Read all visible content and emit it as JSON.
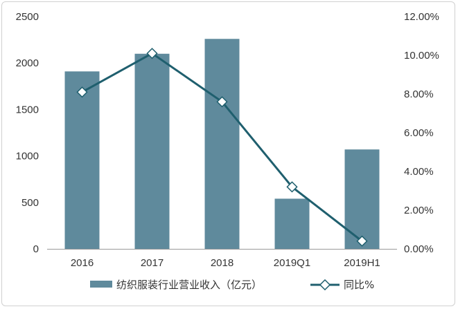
{
  "chart_data": {
    "type": "bar",
    "categories": [
      "2016",
      "2017",
      "2018",
      "2019Q1",
      "2019H1"
    ],
    "series": [
      {
        "name": "纺织服装行业营业收入（亿元）",
        "type": "bar",
        "axis": "left",
        "color": "#5f8a9c",
        "values": [
          1910,
          2100,
          2260,
          540,
          1070
        ]
      },
      {
        "name": "同比%",
        "type": "line",
        "axis": "right",
        "color": "#1f5f6e",
        "values": [
          0.081,
          0.101,
          0.076,
          0.032,
          0.004
        ]
      }
    ],
    "y_left": {
      "min": 0,
      "max": 2500,
      "ticks": [
        0,
        500,
        1000,
        1500,
        2000,
        2500
      ],
      "tick_labels": [
        "0",
        "500",
        "1000",
        "1500",
        "2000",
        "2500"
      ]
    },
    "y_right": {
      "min": 0,
      "max": 0.12,
      "ticks": [
        0,
        0.02,
        0.04,
        0.06,
        0.08,
        0.1,
        0.12
      ],
      "tick_labels": [
        "0.00%",
        "2.00%",
        "4.00%",
        "6.00%",
        "8.00%",
        "10.00%",
        "12.00%"
      ]
    },
    "grid": false,
    "legend_position": "bottom-center",
    "title": "",
    "xlabel": "",
    "ylabel": ""
  }
}
